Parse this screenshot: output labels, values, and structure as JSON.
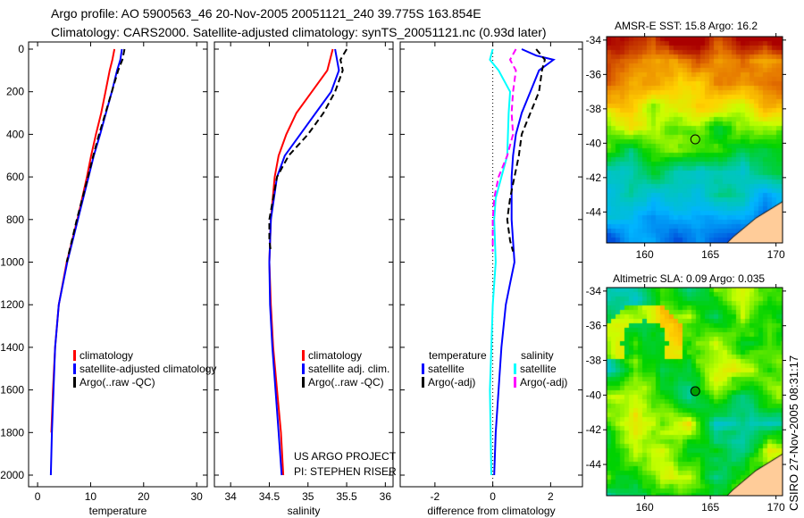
{
  "header": {
    "line1": "Argo profile: AO 5900563_46 20-Nov-2005 20051121_240 39.775S 163.854E",
    "line2": "Climatology: CARS2000. Satellite-adjusted climatology: synTS_20051121.nc (0.93d later)"
  },
  "footer_stamp": "CSIRO 27-Nov-2005 08:31:17",
  "credit": {
    "line1": "US ARGO PROJECT",
    "line2": "PI: STEPHEN RISER"
  },
  "chart_data": [
    {
      "type": "line",
      "xlabel": "temperature",
      "ylabel": "",
      "xlim": [
        -1.7,
        32
      ],
      "ylim": [
        0,
        2040
      ],
      "xticks": [
        "0",
        "10",
        "20",
        "30"
      ],
      "xtick_values": [
        0,
        10,
        20,
        30
      ],
      "yticks": [
        "0",
        "200",
        "400",
        "600",
        "800",
        "1000",
        "1200",
        "1400",
        "1600",
        "1800",
        "2000"
      ],
      "legend": [
        "climatology",
        "satellite-adjusted climatology",
        "Argo(..raw -QC)"
      ],
      "series": [
        {
          "name": "climatology",
          "color": "#ff0000",
          "style": "solid",
          "depth": [
            0,
            50,
            100,
            200,
            300,
            400,
            500,
            600,
            800,
            1000,
            1200,
            1400,
            1600,
            1800
          ],
          "values": [
            14.5,
            14.1,
            13.6,
            12.8,
            12.0,
            11.0,
            10.1,
            9.3,
            7.5,
            5.5,
            4.0,
            3.3,
            2.9,
            2.6
          ]
        },
        {
          "name": "satellite-adjusted climatology",
          "color": "#0000ff",
          "style": "solid",
          "depth": [
            0,
            50,
            100,
            200,
            300,
            400,
            500,
            600,
            800,
            1000,
            1200,
            1400,
            1600,
            1800,
            2000
          ],
          "values": [
            15.9,
            15.6,
            15.0,
            14.0,
            12.9,
            11.8,
            10.6,
            9.6,
            7.6,
            5.6,
            4.0,
            3.3,
            3.0,
            2.7,
            2.5
          ]
        },
        {
          "name": "Argo(..raw -QC)",
          "color": "#000000",
          "style": "dash",
          "depth": [
            0,
            50,
            100,
            200,
            300,
            400,
            500,
            600,
            800,
            1000
          ],
          "values": [
            16.4,
            16.0,
            15.2,
            14.0,
            12.8,
            11.6,
            10.5,
            9.5,
            7.4,
            5.5
          ]
        }
      ]
    },
    {
      "type": "line",
      "xlabel": "salinity",
      "xlim": [
        33.79,
        36.1
      ],
      "ylim": [
        0,
        2040
      ],
      "xticks": [
        "34",
        "34.5",
        "35",
        "35.5",
        "36"
      ],
      "xtick_values": [
        34,
        34.5,
        35,
        35.5,
        36
      ],
      "legend": [
        "climatology",
        "satellite adj. clim.",
        "Argo(..raw -QC)"
      ],
      "series": [
        {
          "name": "climatology",
          "color": "#ff0000",
          "style": "solid",
          "depth": [
            0,
            100,
            200,
            300,
            400,
            500,
            600,
            800,
            1000,
            1200,
            1400,
            1600,
            1800,
            2000
          ],
          "values": [
            35.32,
            35.25,
            35.05,
            34.85,
            34.72,
            34.62,
            34.57,
            34.52,
            34.5,
            34.52,
            34.55,
            34.6,
            34.65,
            34.68
          ]
        },
        {
          "name": "satellite adj. clim.",
          "color": "#0000ff",
          "style": "solid",
          "depth": [
            0,
            100,
            200,
            300,
            400,
            500,
            600,
            800,
            1000,
            1200,
            1400,
            1600,
            1800,
            2000
          ],
          "values": [
            35.35,
            35.4,
            35.3,
            35.1,
            34.9,
            34.7,
            34.6,
            34.52,
            34.5,
            34.51,
            34.54,
            34.58,
            34.62,
            34.66
          ]
        },
        {
          "name": "Argo(..raw -QC)",
          "color": "#000000",
          "style": "dash",
          "depth": [
            0,
            50,
            100,
            200,
            300,
            400,
            500,
            600,
            700,
            800,
            900,
            950
          ],
          "values": [
            35.5,
            35.42,
            35.45,
            35.35,
            35.2,
            35.0,
            34.75,
            34.6,
            34.55,
            34.5,
            34.5,
            34.52
          ]
        }
      ]
    },
    {
      "type": "line",
      "xlabel": "difference from climatology",
      "xlim": [
        -3.2,
        3.1
      ],
      "ylim": [
        0,
        2040
      ],
      "xticks": [
        "-2",
        "0",
        "2"
      ],
      "xtick_values": [
        -2,
        0,
        2
      ],
      "legend_groups": [
        {
          "title": "temperature",
          "items": [
            "satellite",
            "Argo(-adj)"
          ]
        },
        {
          "title": "salinity",
          "items": [
            "satellite",
            "Argo(-adj)"
          ]
        }
      ],
      "series": [
        {
          "name": "temperature satellite",
          "color": "#0000ff",
          "style": "solid",
          "depth": [
            0,
            30,
            50,
            100,
            200,
            300,
            400,
            500,
            600,
            800,
            1000,
            1100,
            1200,
            1400,
            1600,
            1800,
            2000
          ],
          "values": [
            1.0,
            1.5,
            2.1,
            1.6,
            1.3,
            1.0,
            0.8,
            0.7,
            0.65,
            0.65,
            0.75,
            0.6,
            0.45,
            0.3,
            0.2,
            0.1,
            0.05
          ]
        },
        {
          "name": "temperature Argo(-adj)",
          "color": "#000000",
          "style": "dash",
          "depth": [
            0,
            50,
            100,
            200,
            300,
            400,
            500,
            600,
            700,
            800,
            900,
            950
          ],
          "values": [
            1.5,
            1.8,
            1.7,
            1.6,
            1.3,
            1.0,
            0.9,
            0.75,
            0.6,
            0.5,
            0.6,
            0.7
          ]
        },
        {
          "name": "salinity satellite",
          "color": "#00ffff",
          "style": "solid",
          "depth": [
            0,
            50,
            100,
            200,
            300,
            500,
            600,
            700,
            800,
            1000,
            1200,
            1600,
            2000
          ],
          "values": [
            0.0,
            -0.1,
            0.2,
            0.6,
            0.55,
            0.5,
            0.3,
            0.1,
            0.05,
            0.1,
            0.0,
            -0.1,
            -0.05
          ]
        },
        {
          "name": "salinity Argo(-adj)",
          "color": "#ff00ff",
          "style": "dash",
          "depth": [
            0,
            50,
            100,
            200,
            300,
            400,
            500,
            600,
            700,
            800,
            950
          ],
          "values": [
            0.8,
            0.6,
            0.8,
            0.7,
            0.65,
            0.7,
            0.5,
            0.2,
            0.05,
            0.0,
            0.0
          ]
        }
      ]
    },
    {
      "type": "heatmap",
      "title": "AMSR-E SST: 15.8 Argo: 16.2",
      "xlim": [
        157.1,
        170.5
      ],
      "ylim": [
        -45.8,
        -33.8
      ],
      "xticks": [
        "160",
        "165",
        "170"
      ],
      "xtick_values": [
        160,
        165,
        170
      ],
      "yticks": [
        "-34",
        "-36",
        "-38",
        "-40",
        "-42",
        "-44"
      ],
      "ytick_values": [
        -34,
        -36,
        -38,
        -40,
        -42,
        -44
      ],
      "marker": {
        "lon": 163.854,
        "lat": -39.775,
        "fill": "none"
      }
    },
    {
      "type": "heatmap",
      "title": "Altimetric SLA: 0.09 Argo: 0.035",
      "xlim": [
        157.1,
        170.5
      ],
      "ylim": [
        -45.8,
        -33.8
      ],
      "xticks": [
        "160",
        "165",
        "170"
      ],
      "xtick_values": [
        160,
        165,
        170
      ],
      "yticks": [
        "-34",
        "-36",
        "-38",
        "-40",
        "-42",
        "-44"
      ],
      "ytick_values": [
        -34,
        -36,
        -38,
        -40,
        -42,
        -44
      ],
      "marker": {
        "lon": 163.854,
        "lat": -39.775,
        "fill": "#00a000"
      }
    }
  ]
}
